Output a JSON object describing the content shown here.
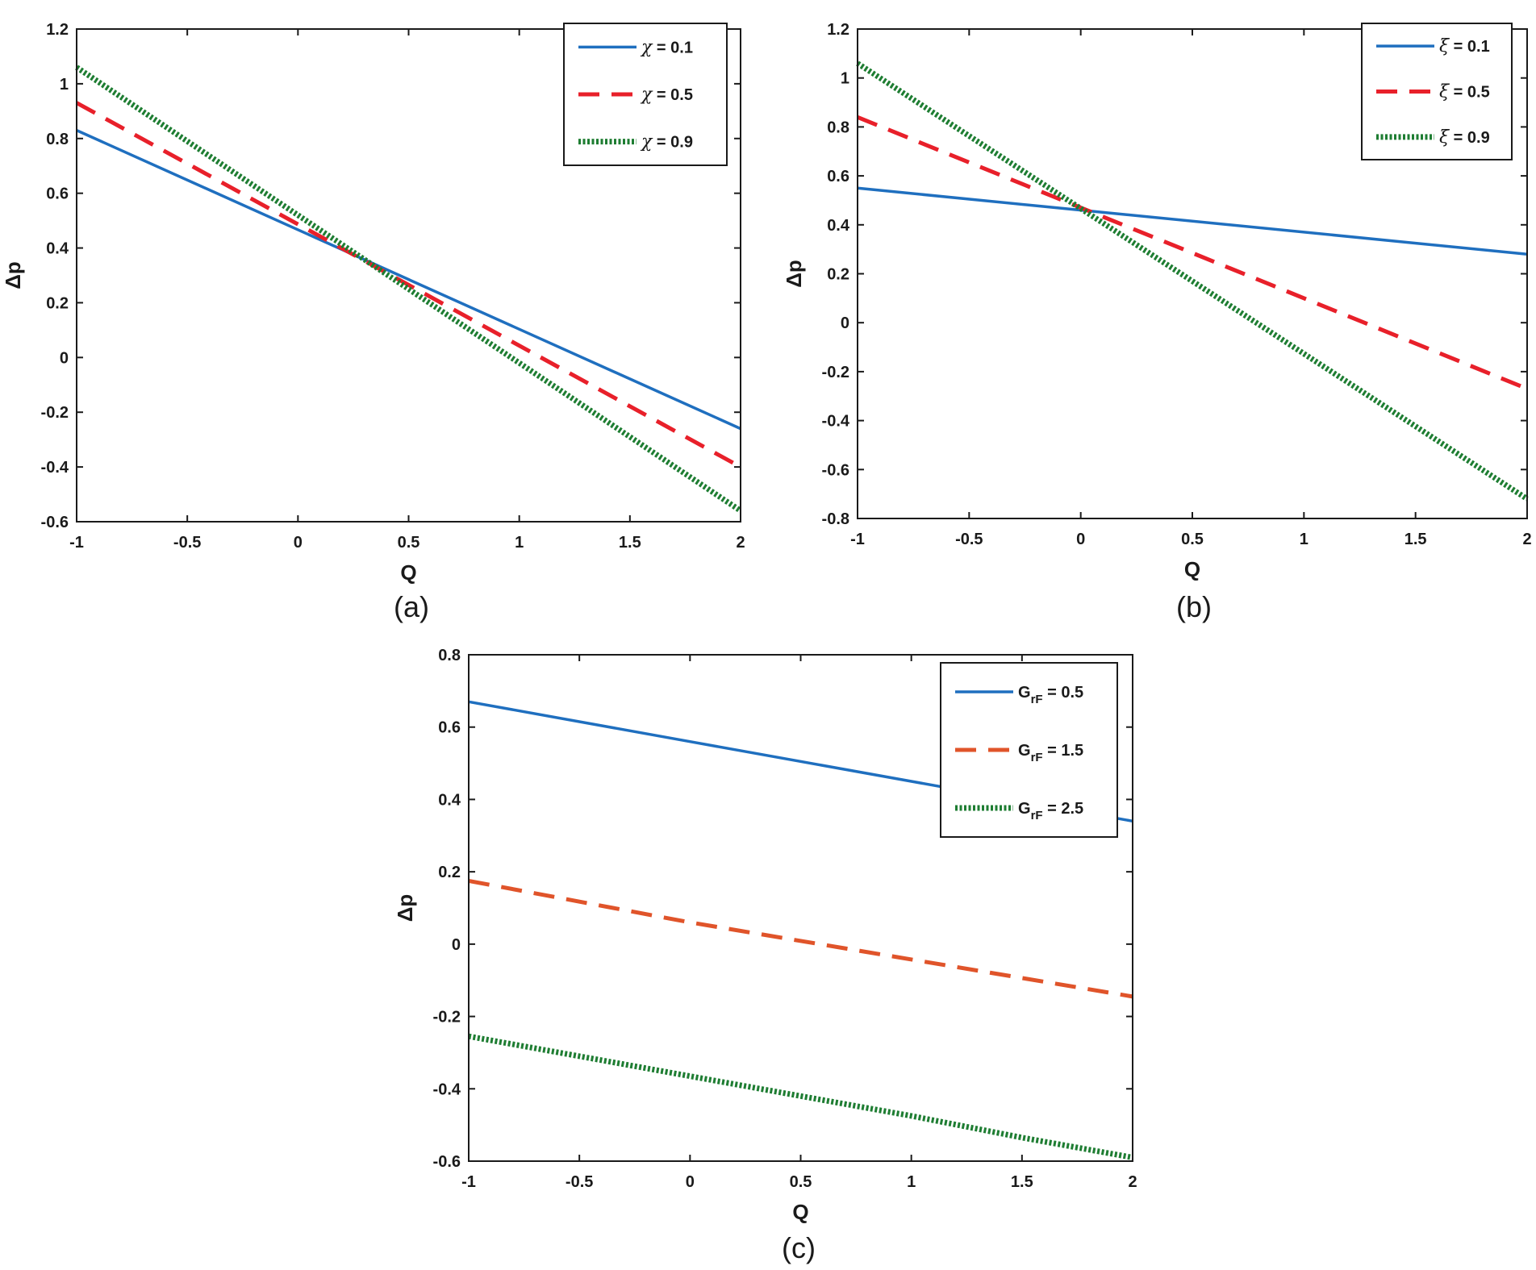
{
  "chart_data": [
    {
      "type": "line",
      "caption": "(a)",
      "xlabel": "Q",
      "ylabel": "Δp",
      "xlim": [
        -1,
        2
      ],
      "ylim": [
        -0.6,
        1.2
      ],
      "xticks": [
        -1,
        -0.5,
        0,
        0.5,
        1,
        1.5,
        2
      ],
      "xtick_labels": [
        "-1",
        "-0.5",
        "0",
        "0.5",
        "1",
        "1.5",
        "2"
      ],
      "yticks": [
        -0.6,
        -0.4,
        -0.2,
        0,
        0.2,
        0.4,
        0.6,
        0.8,
        1,
        1.2
      ],
      "ytick_labels": [
        "-0.6",
        "-0.4",
        "-0.2",
        "0",
        "0.2",
        "0.4",
        "0.6",
        "0.8",
        "1",
        "1.2"
      ],
      "legend_position": "top-right",
      "series": [
        {
          "name": "χ = 0.1",
          "symbol": "χ",
          "rest": " = 0.1",
          "sub": "",
          "style": "solid",
          "color": "#1f6fbf",
          "x": [
            -1,
            2
          ],
          "y": [
            0.83,
            -0.26
          ]
        },
        {
          "name": "χ = 0.5",
          "symbol": "χ",
          "rest": " = 0.5",
          "sub": "",
          "style": "dashed",
          "color": "#e8202a",
          "x": [
            -1,
            2
          ],
          "y": [
            0.93,
            -0.4
          ]
        },
        {
          "name": "χ = 0.9",
          "symbol": "χ",
          "rest": " = 0.9",
          "sub": "",
          "style": "dotted",
          "color": "#1e7d32",
          "x": [
            -1,
            2
          ],
          "y": [
            1.06,
            -0.56
          ]
        }
      ]
    },
    {
      "type": "line",
      "caption": "(b)",
      "xlabel": "Q",
      "ylabel": "Δp",
      "xlim": [
        -1,
        2
      ],
      "ylim": [
        -0.8,
        1.2
      ],
      "xticks": [
        -1,
        -0.5,
        0,
        0.5,
        1,
        1.5,
        2
      ],
      "xtick_labels": [
        "-1",
        "-0.5",
        "0",
        "0.5",
        "1",
        "1.5",
        "2"
      ],
      "yticks": [
        -0.8,
        -0.6,
        -0.4,
        -0.2,
        0,
        0.2,
        0.4,
        0.6,
        0.8,
        1,
        1.2
      ],
      "ytick_labels": [
        "-0.8",
        "-0.6",
        "-0.4",
        "-0.2",
        "0",
        "0.2",
        "0.4",
        "0.6",
        "0.8",
        "1",
        "1.2"
      ],
      "legend_position": "top-right",
      "series": [
        {
          "name": "ξ = 0.1",
          "symbol": "ξ",
          "rest": " = 0.1",
          "sub": "",
          "style": "solid",
          "color": "#1f6fbf",
          "x": [
            -1,
            2
          ],
          "y": [
            0.55,
            0.28
          ]
        },
        {
          "name": "ξ = 0.5",
          "symbol": "ξ",
          "rest": " = 0.5",
          "sub": "",
          "style": "dashed",
          "color": "#e8202a",
          "x": [
            -1,
            2
          ],
          "y": [
            0.84,
            -0.27
          ]
        },
        {
          "name": "ξ = 0.9",
          "symbol": "ξ",
          "rest": " = 0.9",
          "sub": "",
          "style": "dotted",
          "color": "#1e7d32",
          "x": [
            -1,
            2
          ],
          "y": [
            1.06,
            -0.72
          ]
        }
      ]
    },
    {
      "type": "line",
      "caption": "(c)",
      "xlabel": "Q",
      "ylabel": "Δp",
      "xlim": [
        -1,
        2
      ],
      "ylim": [
        -0.6,
        0.8
      ],
      "xticks": [
        -1,
        -0.5,
        0,
        0.5,
        1,
        1.5,
        2
      ],
      "xtick_labels": [
        "-1",
        "-0.5",
        "0",
        "0.5",
        "1",
        "1.5",
        "2"
      ],
      "yticks": [
        -0.6,
        -0.4,
        -0.2,
        0,
        0.2,
        0.4,
        0.6,
        0.8
      ],
      "ytick_labels": [
        "-0.6",
        "-0.4",
        "-0.2",
        "0",
        "0.2",
        "0.4",
        "0.6",
        "0.8"
      ],
      "legend_position": "top-right",
      "series": [
        {
          "name": "GrF = 0.5",
          "symbol": "G",
          "rest": " = 0.5",
          "sub": "rF",
          "style": "solid",
          "color": "#1f6fbf",
          "x": [
            -1,
            0,
            2
          ],
          "y": [
            0.67,
            0.56,
            0.34
          ]
        },
        {
          "name": "GrF = 1.5",
          "symbol": "G",
          "rest": " = 1.5",
          "sub": "rF",
          "style": "dashed",
          "color": "#e0542a",
          "x": [
            -1,
            0,
            2
          ],
          "y": [
            0.175,
            0.06,
            -0.145
          ]
        },
        {
          "name": "GrF = 2.5",
          "symbol": "G",
          "rest": " = 2.5",
          "sub": "rF",
          "style": "dotted",
          "color": "#1e7d32",
          "x": [
            -1,
            -0.5,
            0,
            0.5,
            1,
            1.5,
            2
          ],
          "y": [
            -0.255,
            -0.31,
            -0.365,
            -0.42,
            -0.475,
            -0.535,
            -0.59
          ]
        }
      ]
    }
  ]
}
